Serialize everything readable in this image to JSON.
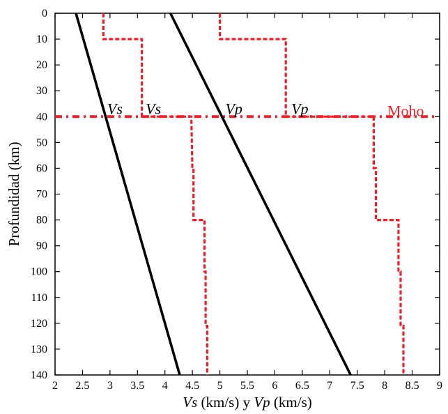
{
  "chart_data": {
    "type": "line",
    "xlabel": {
      "vs": "Vs",
      "unit1": " (km/s) y ",
      "vp": "Vp",
      "unit2": " (km/s)"
    },
    "ylabel": "Profundidad (km)",
    "xlim": [
      2,
      9
    ],
    "ylim": [
      0,
      140
    ],
    "y_inverted": true,
    "x_ticks": [
      "2",
      "2.5",
      "3",
      "3.5",
      "4",
      "4.5",
      "5",
      "5.5",
      "6",
      "6.5",
      "7",
      "7.5",
      "8",
      "8.5",
      "9"
    ],
    "y_ticks": [
      "0",
      "10",
      "20",
      "30",
      "40",
      "50",
      "60",
      "70",
      "80",
      "90",
      "100",
      "110",
      "120",
      "130",
      "140"
    ],
    "grid": false,
    "series": [
      {
        "color": "#000000",
        "style": "solid",
        "x": [
          2.38,
          4.27
        ],
        "y": [
          0,
          140
        ]
      },
      {
        "color": "#000000",
        "style": "solid",
        "x": [
          4.1,
          7.38
        ],
        "y": [
          0,
          140
        ]
      },
      {
        "color": "#e8222a",
        "style": "dashed",
        "x": [
          2.88,
          2.88,
          3.58,
          3.58,
          4.48,
          4.5,
          4.52,
          4.52,
          4.72,
          4.72,
          4.74,
          4.74,
          4.77,
          4.77
        ],
        "y": [
          0,
          10,
          10,
          40,
          40,
          60,
          60,
          80,
          80,
          100,
          100,
          121,
          121,
          140
        ]
      },
      {
        "color": "#e8222a",
        "style": "dashed",
        "x": [
          5.0,
          5.0,
          6.2,
          6.2,
          7.8,
          7.8,
          7.84,
          7.84,
          8.25,
          8.25,
          8.29,
          8.29,
          8.34,
          8.34
        ],
        "y": [
          0,
          10,
          10,
          40,
          40,
          60,
          60,
          80,
          80,
          100,
          100,
          121,
          121,
          140
        ]
      }
    ],
    "moho": {
      "y": 40,
      "color": "#e8222a",
      "style": "dash-dot",
      "label": "Moho"
    },
    "annotations": [
      {
        "text": "Vs",
        "x": 2.95,
        "y": 39
      },
      {
        "text": "Vs",
        "x": 3.65,
        "y": 39
      },
      {
        "text": "Vp",
        "x": 5.1,
        "y": 39
      },
      {
        "text": "Vp",
        "x": 6.3,
        "y": 39
      }
    ]
  }
}
